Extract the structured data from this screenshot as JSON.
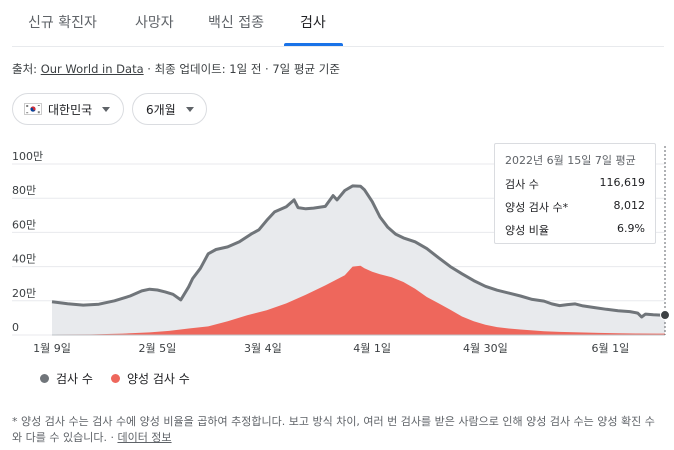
{
  "tabs": [
    {
      "label": "신규 확진자",
      "active": false
    },
    {
      "label": "사망자",
      "active": false
    },
    {
      "label": "백신 접종",
      "active": false
    },
    {
      "label": "검사",
      "active": true
    }
  ],
  "source": {
    "prefix": "출처: ",
    "link": "Our World in Data",
    "suffix": " · 최종 업데이트: 1일 전 · 7일 평균 기준"
  },
  "filters": {
    "country": "대한민국",
    "period": "6개월"
  },
  "tooltip": {
    "date": "2022년 6월 15일 7일 평균",
    "rows": [
      {
        "label": "검사 수",
        "value": "116,619"
      },
      {
        "label": "양성 검사 수*",
        "value": "8,012"
      },
      {
        "label": "양성 비율",
        "value": "6.9%"
      }
    ]
  },
  "legend": [
    {
      "label": "검사 수",
      "color": "#70757a"
    },
    {
      "label": "양성 검사 수",
      "color": "#ee675c"
    }
  ],
  "footnote": {
    "text": "* 양성 검사 수는 검사 수에 양성 비율을 곱하여 추정합니다. 보고 방식 차이, 여러 번 검사를 받은 사람으로 인해 양성 검사 수는 양성 확진 수와 다를 수 있습니다.",
    "separator": " · ",
    "link": "데이터 정보"
  },
  "chart_data": {
    "type": "area",
    "title": "",
    "xlabel": "",
    "ylabel": "",
    "y_ticks": [
      {
        "value": 0,
        "label": "0"
      },
      {
        "value": 200000,
        "label": "20만"
      },
      {
        "value": 400000,
        "label": "40만"
      },
      {
        "value": 600000,
        "label": "60만"
      },
      {
        "value": 800000,
        "label": "80만"
      },
      {
        "value": 1000000,
        "label": "100만"
      }
    ],
    "ylim": [
      0,
      1000000
    ],
    "x_days_range": [
      0,
      157
    ],
    "x_ticks": [
      {
        "day": 0,
        "label": "1월 9일"
      },
      {
        "day": 27,
        "label": "2월 5일"
      },
      {
        "day": 54,
        "label": "3월 4일"
      },
      {
        "day": 82,
        "label": "4월 1일"
      },
      {
        "day": 111,
        "label": "4월 30일"
      },
      {
        "day": 143,
        "label": "6월 1일"
      }
    ],
    "highlight_day": 157,
    "series": [
      {
        "name": "검사 수",
        "color": "#70757a",
        "fill": "#e8eaed",
        "points": [
          [
            0,
            195000
          ],
          [
            4,
            183000
          ],
          [
            8,
            175000
          ],
          [
            12,
            180000
          ],
          [
            16,
            200000
          ],
          [
            20,
            228000
          ],
          [
            23,
            258000
          ],
          [
            25,
            268000
          ],
          [
            27,
            263000
          ],
          [
            29,
            252000
          ],
          [
            31,
            238000
          ],
          [
            33,
            205000
          ],
          [
            35,
            282000
          ],
          [
            36,
            330000
          ],
          [
            38,
            390000
          ],
          [
            40,
            475000
          ],
          [
            42,
            500000
          ],
          [
            45,
            515000
          ],
          [
            48,
            545000
          ],
          [
            51,
            590000
          ],
          [
            53,
            615000
          ],
          [
            55,
            670000
          ],
          [
            57,
            720000
          ],
          [
            60,
            750000
          ],
          [
            62,
            790000
          ],
          [
            63,
            745000
          ],
          [
            65,
            738000
          ],
          [
            67,
            742000
          ],
          [
            70,
            752000
          ],
          [
            72,
            815000
          ],
          [
            73,
            790000
          ],
          [
            75,
            845000
          ],
          [
            77,
            872000
          ],
          [
            79,
            870000
          ],
          [
            80,
            850000
          ],
          [
            82,
            780000
          ],
          [
            84,
            690000
          ],
          [
            86,
            630000
          ],
          [
            88,
            590000
          ],
          [
            90,
            568000
          ],
          [
            93,
            545000
          ],
          [
            96,
            505000
          ],
          [
            99,
            452000
          ],
          [
            102,
            400000
          ],
          [
            105,
            358000
          ],
          [
            108,
            318000
          ],
          [
            111,
            285000
          ],
          [
            114,
            262000
          ],
          [
            117,
            245000
          ],
          [
            120,
            228000
          ],
          [
            123,
            208000
          ],
          [
            126,
            198000
          ],
          [
            128,
            182000
          ],
          [
            130,
            172000
          ],
          [
            132,
            178000
          ],
          [
            134,
            182000
          ],
          [
            136,
            170000
          ],
          [
            139,
            160000
          ],
          [
            142,
            150000
          ],
          [
            145,
            142000
          ],
          [
            148,
            137000
          ],
          [
            150,
            128000
          ],
          [
            151,
            105000
          ],
          [
            152,
            122000
          ],
          [
            154,
            118000
          ],
          [
            156,
            116619
          ],
          [
            157,
            116619
          ]
        ]
      },
      {
        "name": "양성 검사 수",
        "color": "#ee675c",
        "fill": "#ee675c",
        "points": [
          [
            0,
            3000
          ],
          [
            10,
            3500
          ],
          [
            18,
            8000
          ],
          [
            25,
            15000
          ],
          [
            30,
            24000
          ],
          [
            35,
            38000
          ],
          [
            40,
            50000
          ],
          [
            45,
            80000
          ],
          [
            50,
            115000
          ],
          [
            55,
            145000
          ],
          [
            60,
            185000
          ],
          [
            65,
            235000
          ],
          [
            70,
            290000
          ],
          [
            75,
            350000
          ],
          [
            77,
            400000
          ],
          [
            79,
            405000
          ],
          [
            80,
            390000
          ],
          [
            82,
            370000
          ],
          [
            84,
            355000
          ],
          [
            87,
            338000
          ],
          [
            90,
            310000
          ],
          [
            93,
            270000
          ],
          [
            96,
            222000
          ],
          [
            99,
            186000
          ],
          [
            102,
            148000
          ],
          [
            105,
            108000
          ],
          [
            108,
            80000
          ],
          [
            111,
            60000
          ],
          [
            114,
            46000
          ],
          [
            117,
            38000
          ],
          [
            120,
            32000
          ],
          [
            123,
            27000
          ],
          [
            126,
            22000
          ],
          [
            130,
            18000
          ],
          [
            135,
            15000
          ],
          [
            140,
            12000
          ],
          [
            145,
            10000
          ],
          [
            150,
            9000
          ],
          [
            155,
            8100
          ],
          [
            157,
            8012
          ]
        ]
      }
    ]
  }
}
